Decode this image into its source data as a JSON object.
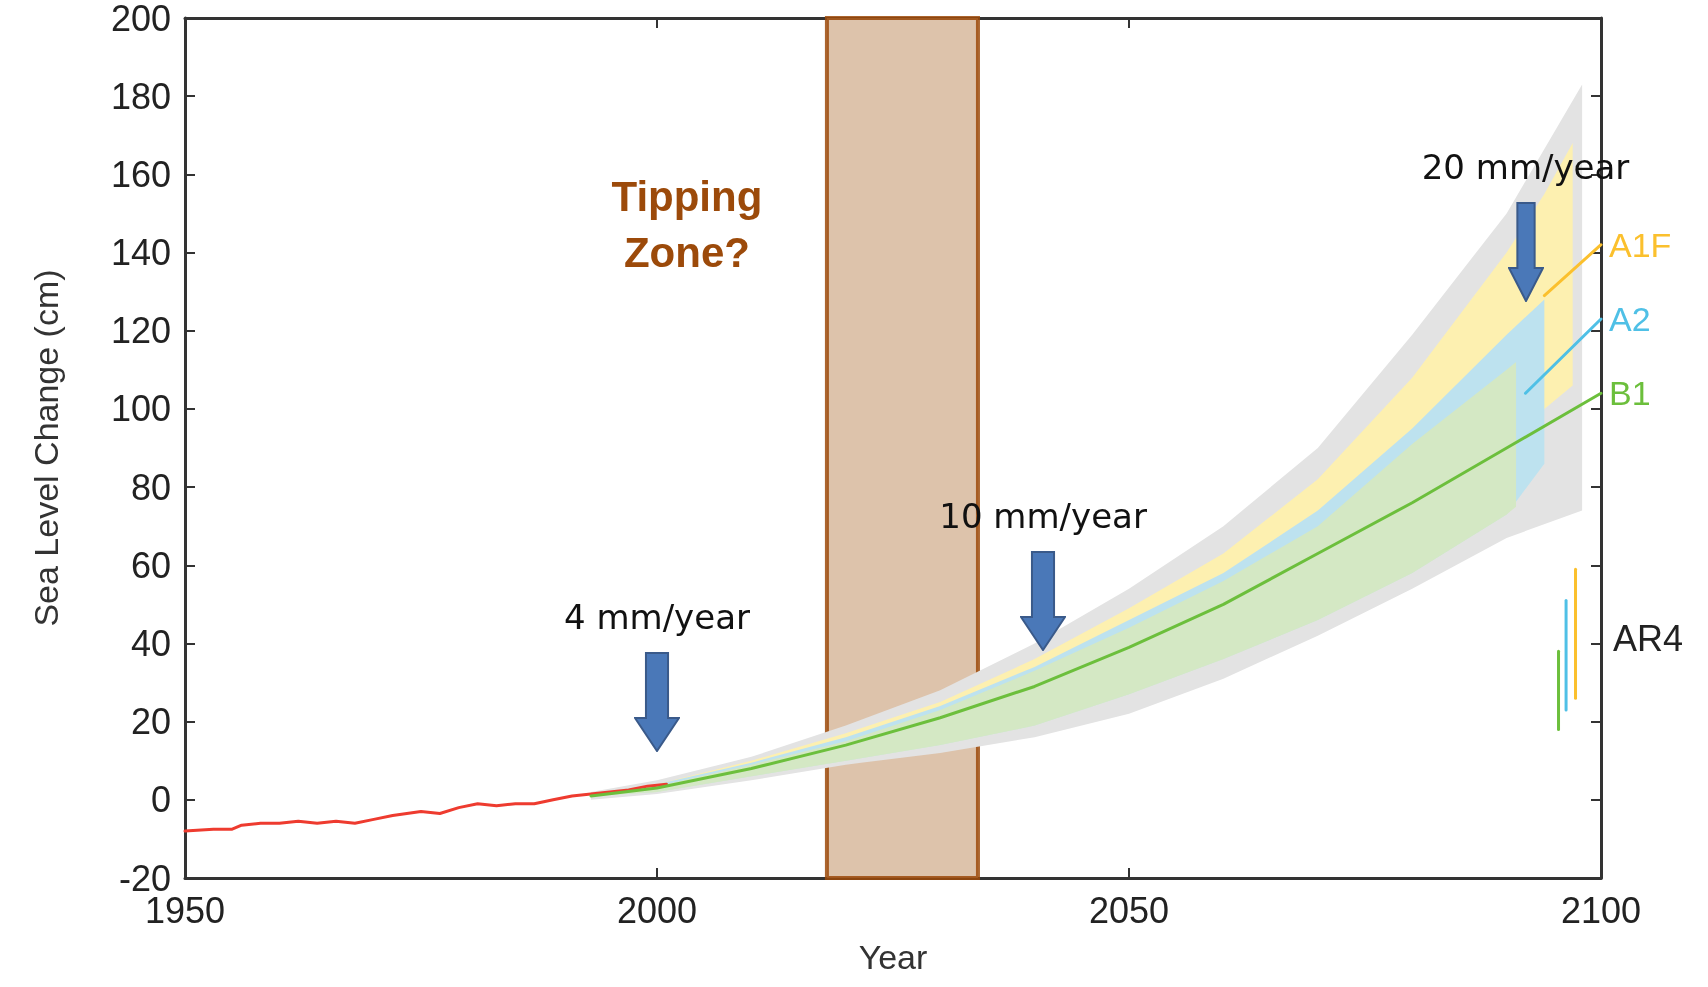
{
  "chart_data": {
    "type": "line",
    "xlabel": "Year",
    "ylabel": "Sea Level Change (cm)",
    "xlim": [
      1950,
      2100
    ],
    "xticks": [
      1950,
      2000,
      2050,
      2100
    ],
    "ylim": [
      -20,
      200
    ],
    "yticks": [
      -20,
      0,
      20,
      40,
      60,
      80,
      100,
      120,
      140,
      160,
      180,
      200
    ],
    "grid": false,
    "legend": false,
    "marker": "none",
    "line_style": "solid",
    "series": [
      {
        "type": "area",
        "color": "#e3e3e3",
        "x": [
          1993,
          2000,
          2010,
          2020,
          2030,
          2040,
          2050,
          2060,
          2070,
          2080,
          2090,
          2098
        ],
        "values": [
          null,
          null,
          null,
          null,
          null,
          null,
          null,
          null,
          null,
          null,
          null,
          null
        ],
        "lower": [
          0,
          1.5,
          5,
          9,
          12,
          16,
          22,
          31,
          42,
          54,
          67,
          74
        ],
        "upper": [
          2,
          5,
          11,
          19,
          28,
          40,
          54,
          70,
          90,
          119,
          150,
          183
        ]
      },
      {
        "type": "area",
        "color": "#fdf0b0",
        "x": [
          1993,
          2000,
          2010,
          2020,
          2030,
          2040,
          2050,
          2060,
          2070,
          2080,
          2090,
          2094,
          2097
        ],
        "values": [
          null,
          null,
          null,
          null,
          null,
          null,
          null,
          null,
          null,
          null,
          null,
          null,
          null
        ],
        "lower": [
          1,
          2,
          6,
          10,
          14,
          19,
          27,
          36,
          46,
          58,
          73,
          100,
          106
        ],
        "upper": [
          1.5,
          4,
          10,
          17,
          25,
          36,
          49,
          63,
          82,
          108,
          140,
          155,
          168
        ]
      },
      {
        "type": "area",
        "color": "#bde2ef",
        "x": [
          1993,
          2000,
          2010,
          2020,
          2030,
          2040,
          2050,
          2060,
          2070,
          2080,
          2090,
          2094
        ],
        "values": [
          null,
          null,
          null,
          null,
          null,
          null,
          null,
          null,
          null,
          null,
          null,
          null
        ],
        "lower": [
          1,
          2,
          6,
          10,
          14,
          19,
          27,
          36,
          46,
          58,
          73,
          86
        ],
        "upper": [
          1.5,
          4,
          9.5,
          16,
          24,
          34,
          46,
          58,
          74,
          95,
          119,
          128
        ]
      },
      {
        "type": "area",
        "color": "#d4e8c4",
        "x": [
          1993,
          2000,
          2010,
          2020,
          2030,
          2040,
          2050,
          2060,
          2070,
          2080,
          2090,
          2091
        ],
        "values": [
          null,
          null,
          null,
          null,
          null,
          null,
          null,
          null,
          null,
          null,
          null,
          null
        ],
        "lower": [
          1,
          2,
          6,
          10,
          14,
          19,
          27,
          36,
          46,
          58,
          73,
          75
        ],
        "upper": [
          1.5,
          3.5,
          9,
          15,
          23,
          33,
          44,
          56,
          70,
          91,
          110,
          112
        ]
      },
      {
        "color": "#ee3b2f",
        "x": [
          1950,
          1953,
          1955,
          1956,
          1958,
          1960,
          1962,
          1964,
          1966,
          1968,
          1970,
          1972,
          1975,
          1977,
          1979,
          1981,
          1983,
          1985,
          1987,
          1989,
          1991,
          1993,
          1995,
          1997,
          1999,
          2001
        ],
        "values": [
          -8,
          -7.5,
          -7.5,
          -6.5,
          -6,
          -6,
          -5.5,
          -6,
          -5.5,
          -6,
          -5,
          -4,
          -3,
          -3.5,
          -2,
          -1,
          -1.5,
          -1,
          -1,
          0,
          1,
          1.5,
          2,
          2.5,
          3.5,
          4
        ]
      },
      {
        "name": "B1",
        "color": "#6cbf3c",
        "x": [
          1993,
          2000,
          2010,
          2020,
          2030,
          2040,
          2050,
          2060,
          2070,
          2080,
          2090,
          2100
        ],
        "values": [
          1,
          3,
          8,
          14,
          21,
          29,
          39,
          50,
          63,
          76,
          90,
          104
        ]
      },
      {
        "name": "A2",
        "color": "#4fc0e6",
        "x": [
          2092,
          2100
        ],
        "values": [
          104,
          123
        ]
      },
      {
        "name": "A1F",
        "color": "#fbc02d",
        "x": [
          2094,
          2100
        ],
        "values": [
          129,
          142
        ]
      },
      {
        "color": "#6cbf3c",
        "x": [
          2095.5,
          2095.5
        ],
        "values": [
          18,
          38
        ]
      },
      {
        "color": "#4fc0e6",
        "x": [
          2096.3,
          2096.3
        ],
        "values": [
          23,
          51
        ]
      },
      {
        "color": "#fbc02d",
        "x": [
          2097.3,
          2097.3
        ],
        "values": [
          26,
          59
        ]
      }
    ],
    "bands": [
      {
        "axis": "x",
        "from": 2018,
        "to": 2034,
        "label": "Tipping Zone?",
        "color": "#d7b89c"
      }
    ],
    "annotations": [
      "4 mm/year",
      "10 mm/year",
      "20 mm/year",
      "AR4"
    ]
  }
}
